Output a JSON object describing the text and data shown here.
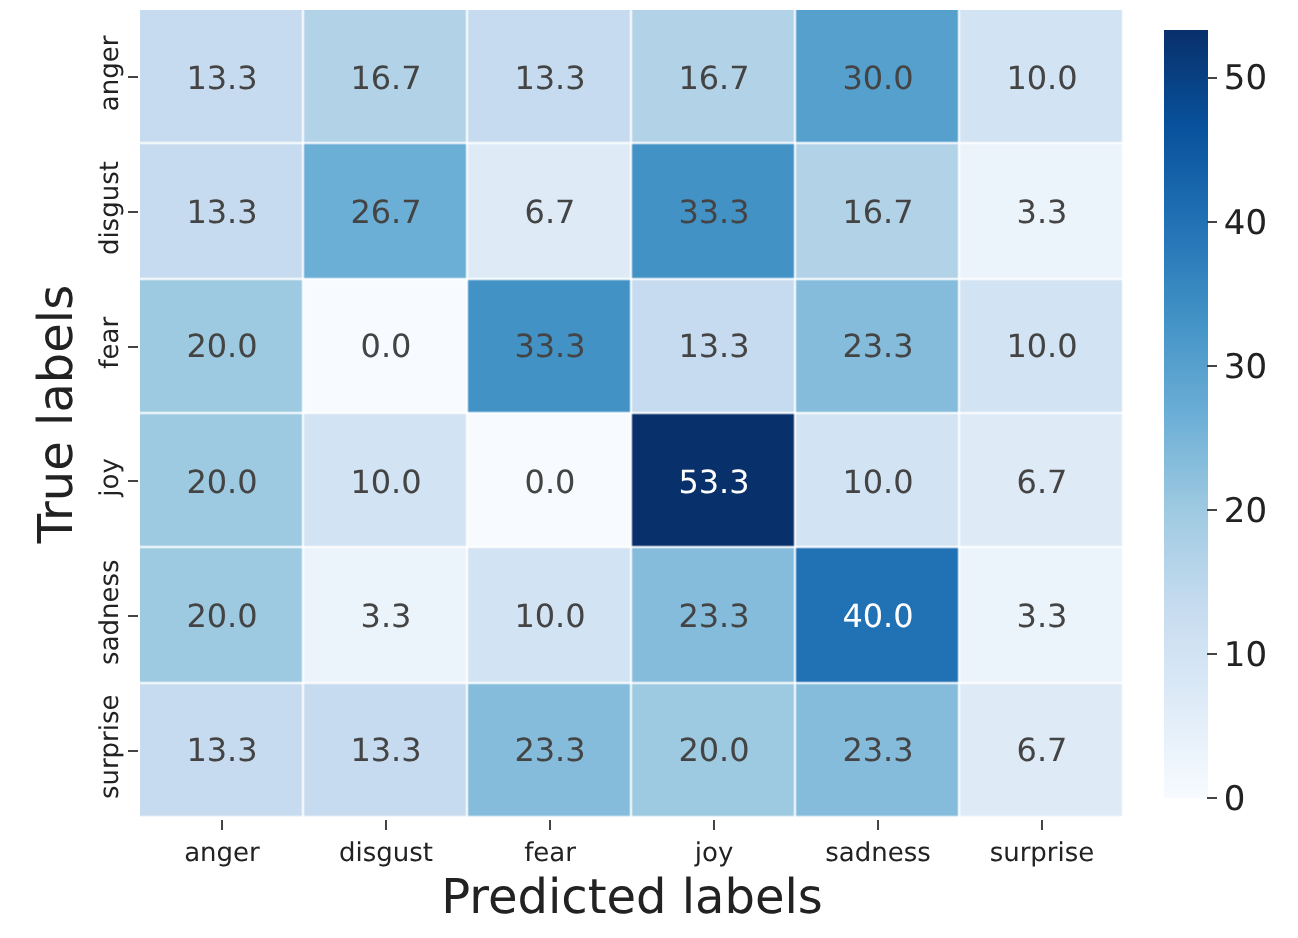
{
  "chart_data": {
    "type": "heatmap",
    "xlabel": "Predicted labels",
    "ylabel": "True labels",
    "categories": [
      "anger",
      "disgust",
      "fear",
      "joy",
      "sadness",
      "surprise"
    ],
    "y_categories": [
      "anger",
      "disgust",
      "fear",
      "joy",
      "sadness",
      "surprise"
    ],
    "cells": [
      [
        13.3,
        16.7,
        13.3,
        16.7,
        30.0,
        10.0
      ],
      [
        13.3,
        26.7,
        6.7,
        33.3,
        16.7,
        3.3
      ],
      [
        20.0,
        0.0,
        33.3,
        13.3,
        23.3,
        10.0
      ],
      [
        20.0,
        10.0,
        0.0,
        53.3,
        10.0,
        6.7
      ],
      [
        20.0,
        3.3,
        10.0,
        23.3,
        40.0,
        3.3
      ],
      [
        13.3,
        13.3,
        23.3,
        20.0,
        23.3,
        6.7
      ]
    ],
    "cell_labels": [
      [
        "13.3",
        "16.7",
        "13.3",
        "16.7",
        "30.0",
        "10.0"
      ],
      [
        "13.3",
        "26.7",
        "6.7",
        "33.3",
        "16.7",
        "3.3"
      ],
      [
        "20.0",
        "0.0",
        "33.3",
        "13.3",
        "23.3",
        "10.0"
      ],
      [
        "20.0",
        "10.0",
        "0.0",
        "53.3",
        "10.0",
        "6.7"
      ],
      [
        "20.0",
        "3.3",
        "10.0",
        "23.3",
        "40.0",
        "3.3"
      ],
      [
        "13.3",
        "13.3",
        "23.3",
        "20.0",
        "23.3",
        "6.7"
      ]
    ],
    "clim": [
      0,
      53.3
    ],
    "cticks": [
      0,
      10,
      20,
      30,
      40,
      50
    ]
  }
}
